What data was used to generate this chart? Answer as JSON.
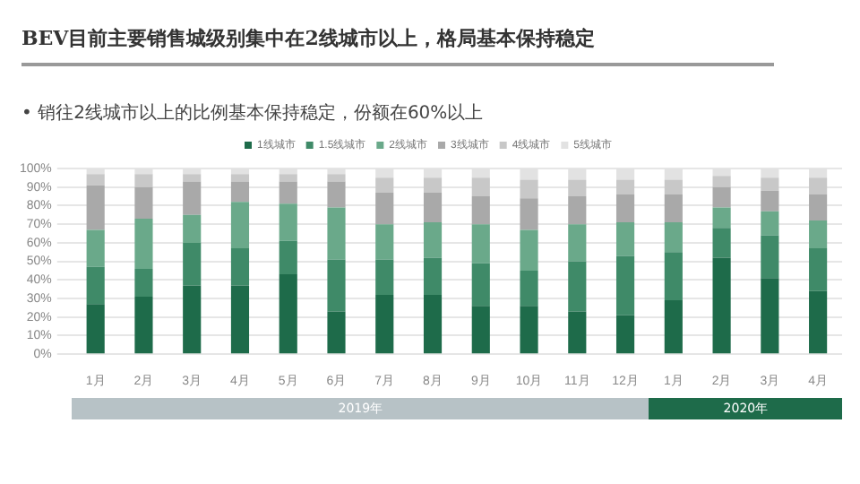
{
  "chart_data": {
    "type": "bar",
    "title": "BEV目前主要销售城级别集中在2线城市以上，格局基本保持稳定",
    "subtitle": "• 销往2线城市以上的比例基本保持稳定，份额在60%以上",
    "categories": [
      "1月",
      "2月",
      "3月",
      "4月",
      "5月",
      "6月",
      "7月",
      "8月",
      "9月",
      "10月",
      "11月",
      "12月",
      "1月",
      "2月",
      "3月",
      "4月"
    ],
    "stacked": true,
    "series": [
      {
        "name": "1线城市",
        "color": "#1e6b4a",
        "values": [
          27,
          31,
          37,
          37,
          43,
          23,
          32,
          32,
          26,
          26,
          23,
          21,
          29,
          52,
          41,
          34
        ]
      },
      {
        "name": "1.5线城市",
        "color": "#3f8a68",
        "values": [
          20,
          15,
          23,
          20,
          18,
          28,
          19,
          20,
          23,
          19,
          27,
          32,
          26,
          16,
          23,
          23
        ]
      },
      {
        "name": "2线城市",
        "color": "#6aa98a",
        "values": [
          20,
          27,
          15,
          25,
          20,
          28,
          19,
          19,
          21,
          22,
          20,
          18,
          16,
          11,
          13,
          15
        ]
      },
      {
        "name": "3线城市",
        "color": "#a9a9a9",
        "values": [
          24,
          17,
          18,
          11,
          12,
          14,
          17,
          16,
          15,
          17,
          15,
          15,
          15,
          11,
          11,
          14
        ]
      },
      {
        "name": "4线城市",
        "color": "#c8c8c8",
        "values": [
          6,
          7,
          4,
          4,
          4,
          4,
          8,
          8,
          10,
          10,
          9,
          8,
          8,
          6,
          7,
          9
        ]
      },
      {
        "name": "5线城市",
        "color": "#e2e2e2",
        "values": [
          3,
          3,
          3,
          3,
          3,
          3,
          5,
          5,
          5,
          6,
          6,
          6,
          6,
          4,
          5,
          5
        ]
      }
    ],
    "ylim": [
      0,
      100
    ],
    "yticks": [
      {
        "value": 0,
        "label": "0%"
      },
      {
        "value": 10,
        "label": "10%"
      },
      {
        "value": 20,
        "label": "20%"
      },
      {
        "value": 30,
        "label": "30%"
      },
      {
        "value": 40,
        "label": "40%"
      },
      {
        "value": 50,
        "label": "50%"
      },
      {
        "value": 60,
        "label": "60%"
      },
      {
        "value": 70,
        "label": "70%"
      },
      {
        "value": 80,
        "label": "80%"
      },
      {
        "value": 90,
        "label": "90%"
      },
      {
        "value": 100,
        "label": "100%"
      }
    ],
    "grid": "y",
    "legend": "top",
    "annotations": [
      "2019年",
      "2020年"
    ]
  }
}
